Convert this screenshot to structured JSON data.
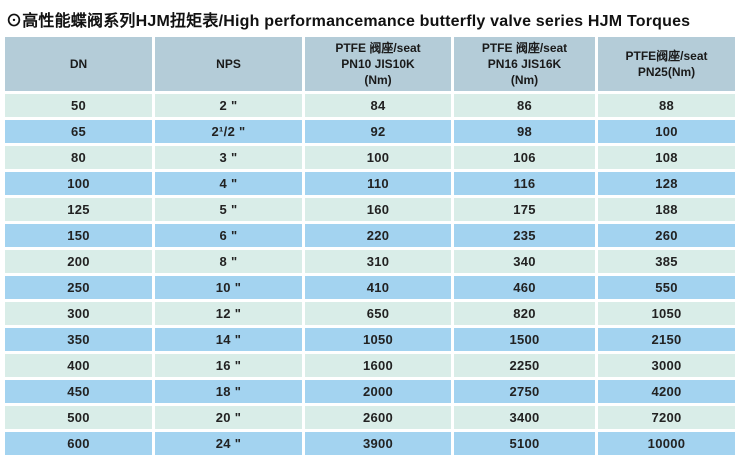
{
  "page": {
    "title": "⊙高性能蝶阀系列HJM扭矩表/High performancemance butterfly valve series HJM Torques"
  },
  "colors": {
    "header_bg": "#b4ccd8",
    "row_light": "#d9ede8",
    "row_blue": "#a3d3f0",
    "text": "#1a1a1a",
    "background": "#ffffff"
  },
  "table": {
    "row_keys": [
      "dn",
      "nps",
      "pn10",
      "pn16",
      "pn25"
    ],
    "columns": [
      {
        "key": "dn",
        "label": "DN"
      },
      {
        "key": "nps",
        "label": "NPS"
      },
      {
        "key": "pn10",
        "label": "PTFE 阀座/seat\nPN10 JIS10K\n(Nm)"
      },
      {
        "key": "pn16",
        "label": "PTFE 阀座/seat\nPN16 JIS16K\n(Nm)"
      },
      {
        "key": "pn25",
        "label": "PTFE阀座/seat\nPN25(Nm)"
      }
    ],
    "rows": [
      {
        "dn": "50",
        "nps": "2 \"",
        "pn10": "84",
        "pn16": "86",
        "pn25": "88"
      },
      {
        "dn": "65",
        "nps": "2¹/2 \"",
        "pn10": "92",
        "pn16": "98",
        "pn25": "100"
      },
      {
        "dn": "80",
        "nps": "3 \"",
        "pn10": "100",
        "pn16": "106",
        "pn25": "108"
      },
      {
        "dn": "100",
        "nps": "4 \"",
        "pn10": "110",
        "pn16": "116",
        "pn25": "128"
      },
      {
        "dn": "125",
        "nps": "5 \"",
        "pn10": "160",
        "pn16": "175",
        "pn25": "188"
      },
      {
        "dn": "150",
        "nps": "6 \"",
        "pn10": "220",
        "pn16": "235",
        "pn25": "260"
      },
      {
        "dn": "200",
        "nps": "8 \"",
        "pn10": "310",
        "pn16": "340",
        "pn25": "385"
      },
      {
        "dn": "250",
        "nps": "10 \"",
        "pn10": "410",
        "pn16": "460",
        "pn25": "550"
      },
      {
        "dn": "300",
        "nps": "12 \"",
        "pn10": "650",
        "pn16": "820",
        "pn25": "1050"
      },
      {
        "dn": "350",
        "nps": "14 \"",
        "pn10": "1050",
        "pn16": "1500",
        "pn25": "2150"
      },
      {
        "dn": "400",
        "nps": "16 \"",
        "pn10": "1600",
        "pn16": "2250",
        "pn25": "3000"
      },
      {
        "dn": "450",
        "nps": "18 \"",
        "pn10": "2000",
        "pn16": "2750",
        "pn25": "4200"
      },
      {
        "dn": "500",
        "nps": "20 \"",
        "pn10": "2600",
        "pn16": "3400",
        "pn25": "7200"
      },
      {
        "dn": "600",
        "nps": "24 \"",
        "pn10": "3900",
        "pn16": "5100",
        "pn25": "10000"
      }
    ]
  }
}
